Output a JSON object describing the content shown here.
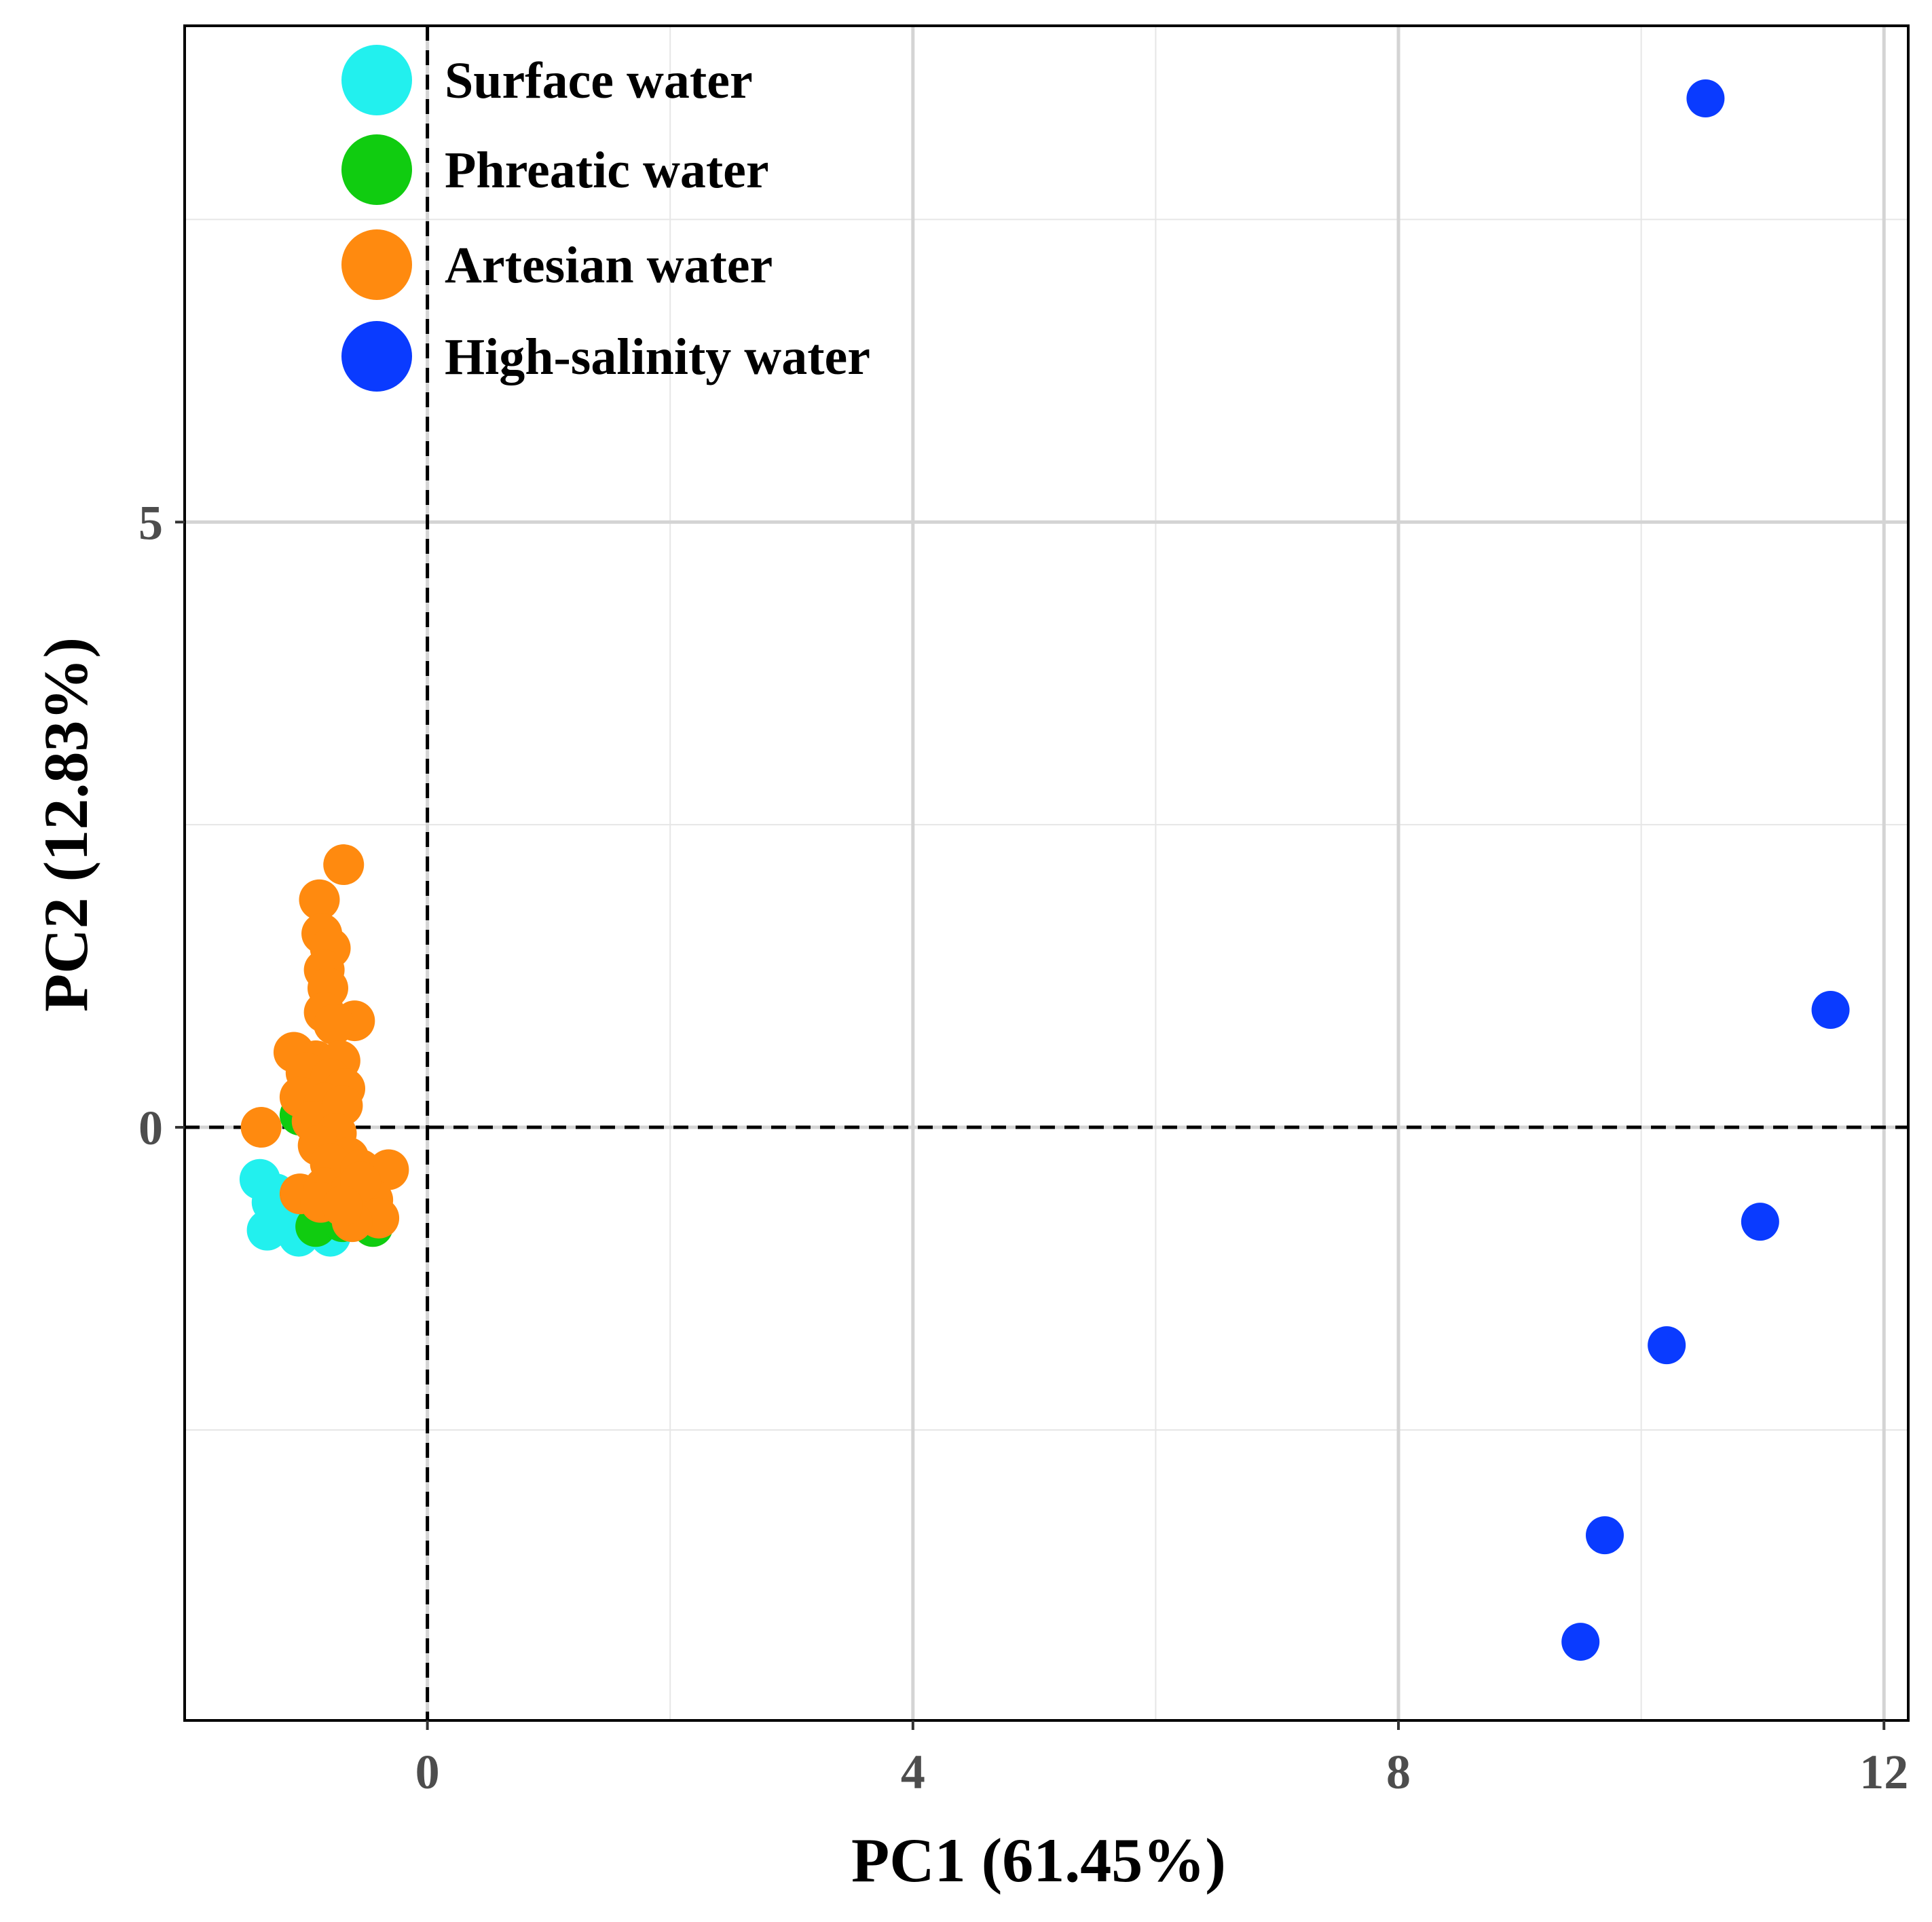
{
  "chart_data": {
    "type": "scatter",
    "title": "",
    "xlabel": "PC1 (61.45%)",
    "ylabel": "PC2 (12.83%)",
    "xlim": [
      -2.0,
      12.2
    ],
    "ylim": [
      -4.9,
      9.1
    ],
    "x_ticks": [
      0,
      4,
      8,
      12
    ],
    "x_tick_labels": [
      "0",
      "4",
      "8",
      "12"
    ],
    "x_minor_grid": [
      2,
      6,
      10
    ],
    "y_ticks": [
      0,
      5
    ],
    "y_tick_labels": [
      "0",
      "5"
    ],
    "y_minor_grid": [
      -2.5,
      2.5,
      7.5
    ],
    "grid": true,
    "reference_lines": {
      "x": 0,
      "y": 0,
      "style": "dashed"
    },
    "legend_position": "top-left",
    "series": [
      {
        "name": "Surface water",
        "color": "#22f0ee",
        "points": [
          [
            -1.38,
            -0.43
          ],
          [
            -1.28,
            -0.62
          ],
          [
            -1.32,
            -0.85
          ],
          [
            -1.1,
            -0.78
          ],
          [
            -1.06,
            -0.9
          ],
          [
            -1.18,
            -0.7
          ],
          [
            -0.95,
            -0.72
          ],
          [
            -0.8,
            -0.9
          ],
          [
            -0.92,
            -0.6
          ],
          [
            -1.25,
            -0.55
          ]
        ]
      },
      {
        "name": "Phreatic water",
        "color": "#10cc10",
        "points": [
          [
            -1.05,
            0.1
          ],
          [
            -0.92,
            -0.82
          ],
          [
            -0.88,
            -0.6
          ],
          [
            -0.7,
            -0.78
          ],
          [
            -0.45,
            -0.82
          ],
          [
            -0.6,
            -0.7
          ],
          [
            -0.75,
            -0.45
          ],
          [
            -0.55,
            -0.55
          ],
          [
            -0.85,
            0.2
          ],
          [
            -0.65,
            -0.3
          ]
        ]
      },
      {
        "name": "Artesian water",
        "color": "#ff8a0f",
        "points": [
          [
            -1.37,
            0.0
          ],
          [
            -0.69,
            2.17
          ],
          [
            -0.89,
            1.88
          ],
          [
            -0.87,
            1.6
          ],
          [
            -0.8,
            1.48
          ],
          [
            -0.85,
            1.3
          ],
          [
            -0.82,
            1.15
          ],
          [
            -0.85,
            0.95
          ],
          [
            -0.6,
            0.88
          ],
          [
            -0.77,
            0.85
          ],
          [
            -1.1,
            0.62
          ],
          [
            -0.92,
            0.55
          ],
          [
            -0.72,
            0.55
          ],
          [
            -1.0,
            0.45
          ],
          [
            -0.8,
            0.4
          ],
          [
            -0.68,
            0.32
          ],
          [
            -1.05,
            0.25
          ],
          [
            -0.85,
            0.2
          ],
          [
            -0.7,
            0.18
          ],
          [
            -0.95,
            0.05
          ],
          [
            -0.75,
            -0.05
          ],
          [
            -0.9,
            -0.15
          ],
          [
            -0.65,
            -0.25
          ],
          [
            -0.8,
            -0.3
          ],
          [
            -0.55,
            -0.35
          ],
          [
            -0.32,
            -0.35
          ],
          [
            -1.05,
            -0.55
          ],
          [
            -0.85,
            -0.5
          ],
          [
            -0.65,
            -0.55
          ],
          [
            -0.45,
            -0.6
          ],
          [
            -0.4,
            -0.75
          ],
          [
            -0.62,
            -0.78
          ],
          [
            -0.88,
            -0.62
          ],
          [
            -0.55,
            -0.45
          ],
          [
            -0.7,
            -0.65
          ]
        ]
      },
      {
        "name": "High-salinity water",
        "color": "#0a3bff",
        "points": [
          [
            10.53,
            8.5
          ],
          [
            11.56,
            0.97
          ],
          [
            10.98,
            -0.78
          ],
          [
            10.21,
            -1.8
          ],
          [
            9.7,
            -3.37
          ],
          [
            9.5,
            -4.25
          ]
        ]
      }
    ]
  }
}
